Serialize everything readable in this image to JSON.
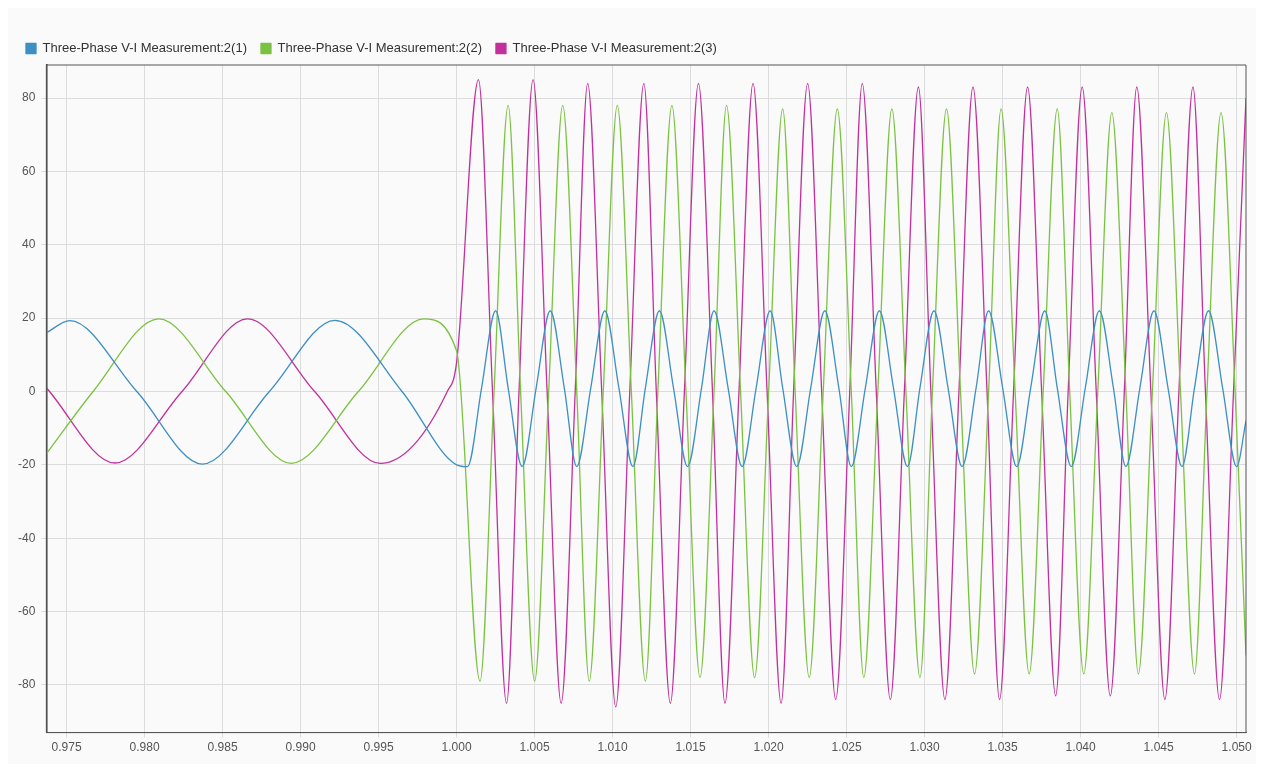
{
  "chart_data": {
    "type": "line",
    "xlim": [
      0.9737,
      1.0506
    ],
    "xticks": [
      {
        "value": 0.975,
        "label": "0.975"
      },
      {
        "value": 0.98,
        "label": "0.980"
      },
      {
        "value": 0.985,
        "label": "0.985"
      },
      {
        "value": 0.99,
        "label": "0.990"
      },
      {
        "value": 0.995,
        "label": "0.995"
      },
      {
        "value": 1.0,
        "label": "1.000"
      },
      {
        "value": 1.005,
        "label": "1.005"
      },
      {
        "value": 1.01,
        "label": "1.010"
      },
      {
        "value": 1.015,
        "label": "1.015"
      },
      {
        "value": 1.02,
        "label": "1.020"
      },
      {
        "value": 1.025,
        "label": "1.025"
      },
      {
        "value": 1.03,
        "label": "1.030"
      },
      {
        "value": 1.035,
        "label": "1.035"
      },
      {
        "value": 1.04,
        "label": "1.040"
      },
      {
        "value": 1.045,
        "label": "1.045"
      },
      {
        "value": 1.05,
        "label": "1.050"
      }
    ],
    "ylim": [
      -93,
      89
    ],
    "yticks": [
      -80,
      -60,
      -40,
      -20,
      0,
      20,
      40,
      60,
      80
    ],
    "grid": true,
    "legend": "top left",
    "marker": "none",
    "line_style": "solid",
    "series": [
      {
        "name": "Three-Phase V-I Measurement:2(1)",
        "color": "#3d8fc4",
        "x": [
          0.9737,
          0.9752,
          0.9795,
          0.9837,
          0.988,
          0.9922,
          0.9965,
          1.0,
          1.0007,
          1.0016,
          1.0025,
          1.0033,
          1.0042,
          1.0051,
          1.006,
          1.0069,
          1.0077,
          1.0086,
          1.0095,
          1.0104,
          1.0113,
          1.0121,
          1.013,
          1.0139,
          1.0148,
          1.0157,
          1.0165,
          1.0174,
          1.0183,
          1.0192,
          1.0201,
          1.0209,
          1.0218,
          1.0227,
          1.0236,
          1.0245,
          1.0253,
          1.0262,
          1.0271,
          1.028,
          1.0289,
          1.0297,
          1.0306,
          1.0315,
          1.0324,
          1.0333,
          1.0341,
          1.035,
          1.0359,
          1.0368,
          1.0377,
          1.0385,
          1.0394,
          1.0403,
          1.0412,
          1.0421,
          1.0429,
          1.0438,
          1.0447,
          1.0456,
          1.0465,
          1.0473,
          1.0482,
          1.0491,
          1.05,
          1.0506
        ],
        "values": [
          16,
          19.3,
          0,
          -19.8,
          0,
          19.4,
          0,
          -20,
          -20.5,
          1,
          22,
          1,
          -20.5,
          1,
          22,
          1,
          -20.5,
          1,
          22,
          1,
          -20.5,
          1,
          22,
          1,
          -20.5,
          1,
          22,
          1,
          -20.5,
          1,
          22,
          1,
          -20.5,
          1,
          22,
          1,
          -20.5,
          1,
          22,
          1,
          -20.5,
          1,
          22,
          1,
          -20.5,
          1,
          22,
          1,
          -20.5,
          1,
          22,
          1,
          -20.5,
          1,
          22,
          1,
          -20.5,
          1,
          22,
          1,
          -20.5,
          1,
          22,
          1,
          -20.5,
          -8
        ]
      },
      {
        "name": "Three-Phase V-I Measurement:2(2)",
        "color": "#7cc242",
        "x": [
          0.9737,
          0.9767,
          0.9809,
          0.9852,
          0.9894,
          0.9937,
          0.9979,
          1.0,
          1.0015,
          1.0024,
          1.0033,
          1.0041,
          1.005,
          1.0059,
          1.0068,
          1.0077,
          1.0085,
          1.0094,
          1.0103,
          1.0112,
          1.0121,
          1.0129,
          1.0138,
          1.0147,
          1.0156,
          1.0165,
          1.0173,
          1.0182,
          1.0191,
          1.02,
          1.0209,
          1.0217,
          1.0226,
          1.0235,
          1.0244,
          1.0253,
          1.0261,
          1.027,
          1.0279,
          1.0288,
          1.0297,
          1.0305,
          1.0314,
          1.0323,
          1.0332,
          1.0341,
          1.0349,
          1.0358,
          1.0367,
          1.0376,
          1.0385,
          1.0393,
          1.0402,
          1.0411,
          1.042,
          1.0429,
          1.0437,
          1.0446,
          1.0455,
          1.0464,
          1.0473,
          1.0481,
          1.049,
          1.0499,
          1.0506
        ],
        "values": [
          -17,
          0,
          19.8,
          0,
          -19.6,
          0,
          19.8,
          11,
          -79,
          0,
          78,
          0,
          -79,
          0,
          78,
          0,
          -79,
          0,
          78,
          0,
          -79,
          0,
          78,
          0,
          -78,
          0,
          78,
          0,
          -78,
          0,
          77,
          0,
          -78,
          0,
          77,
          0,
          -78,
          0,
          77,
          0,
          -78,
          0,
          77,
          0,
          -77,
          0,
          77,
          0,
          -77,
          0,
          77,
          0,
          -77,
          0,
          76,
          0,
          -77,
          0,
          76,
          0,
          -77,
          0,
          76,
          0,
          -72
        ]
      },
      {
        "name": "Three-Phase V-I Measurement:2(3)",
        "color": "#c2309c",
        "x": [
          0.9737,
          0.9781,
          0.9824,
          0.9866,
          0.9909,
          0.9951,
          0.9994,
          1.0,
          1.0014,
          1.0023,
          1.0032,
          1.004,
          1.0049,
          1.0058,
          1.0067,
          1.0076,
          1.0084,
          1.0093,
          1.0102,
          1.0111,
          1.012,
          1.0128,
          1.0137,
          1.0146,
          1.0155,
          1.0164,
          1.0172,
          1.0181,
          1.019,
          1.0199,
          1.0208,
          1.0216,
          1.0225,
          1.0234,
          1.0243,
          1.0252,
          1.026,
          1.0269,
          1.0278,
          1.0287,
          1.0296,
          1.0304,
          1.0313,
          1.0322,
          1.0331,
          1.034,
          1.0348,
          1.0357,
          1.0366,
          1.0375,
          1.0384,
          1.0392,
          1.0401,
          1.041,
          1.0419,
          1.0428,
          1.0436,
          1.0445,
          1.0454,
          1.0463,
          1.0472,
          1.048,
          1.0489,
          1.0498,
          1.0506
        ],
        "values": [
          1,
          -19.5,
          0,
          19.8,
          0,
          -19.6,
          0,
          8,
          85,
          0,
          -85,
          0,
          85,
          0,
          -85,
          0,
          84,
          0,
          -86,
          0,
          84,
          0,
          -85,
          0,
          84,
          0,
          -85,
          0,
          84,
          0,
          -85,
          0,
          84,
          0,
          -84,
          0,
          84,
          0,
          -84,
          0,
          83,
          0,
          -84,
          0,
          83,
          0,
          -84,
          0,
          83,
          0,
          -83,
          0,
          83,
          0,
          -83,
          0,
          83,
          0,
          -84,
          0,
          83,
          0,
          -84,
          0,
          80
        ]
      }
    ]
  }
}
